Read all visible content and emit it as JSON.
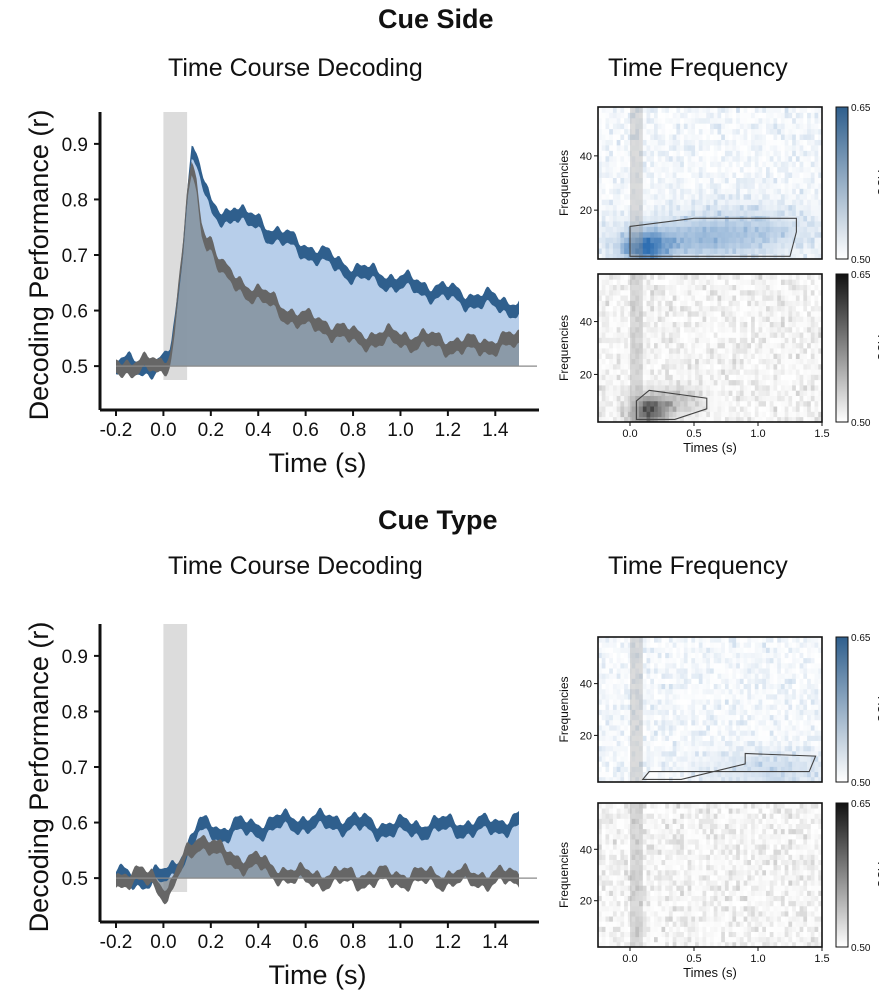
{
  "colors": {
    "blue": "#2f5f8d",
    "blue_fill": "#aac6e6",
    "gray": "#666666",
    "gray_fill": "#7c8892",
    "stim_shade": "#dcdcdc",
    "baseline": "#8a8a8a"
  },
  "sections": [
    {
      "title": "Cue Side",
      "left_title": "Time Course Decoding",
      "right_title": "Time Frequency"
    },
    {
      "title": "Cue Type",
      "left_title": "Time Course Decoding",
      "right_title": "Time Frequency"
    }
  ],
  "chart_data": [
    {
      "type": "area",
      "title": "Time Course Decoding",
      "xlabel": "Time (s)",
      "ylabel": "Decoding Performance (r)",
      "xlim": [
        -0.2,
        1.5
      ],
      "ylim": [
        0.5,
        0.9
      ],
      "xticks": [
        "-0.2",
        "0.0",
        "0.2",
        "0.4",
        "0.6",
        "0.8",
        "1.0",
        "1.2",
        "1.4"
      ],
      "yticks": [
        "0.5",
        "0.6",
        "0.7",
        "0.8",
        "0.9"
      ],
      "baseline": 0.5,
      "shaded_interval": [
        0.0,
        0.1
      ],
      "series": [
        {
          "color": "blue",
          "x": [
            -0.2,
            -0.15,
            -0.1,
            -0.05,
            0.0,
            0.03,
            0.05,
            0.08,
            0.1,
            0.12,
            0.14,
            0.16,
            0.18,
            0.2,
            0.25,
            0.3,
            0.35,
            0.4,
            0.45,
            0.5,
            0.6,
            0.7,
            0.8,
            0.9,
            1.0,
            1.1,
            1.2,
            1.3,
            1.4,
            1.5
          ],
          "y": [
            0.5,
            0.5,
            0.5,
            0.5,
            0.5,
            0.52,
            0.58,
            0.7,
            0.82,
            0.89,
            0.87,
            0.84,
            0.81,
            0.78,
            0.77,
            0.78,
            0.76,
            0.76,
            0.74,
            0.73,
            0.71,
            0.69,
            0.67,
            0.66,
            0.65,
            0.64,
            0.63,
            0.62,
            0.615,
            0.605
          ],
          "band": 0.012
        },
        {
          "color": "gray",
          "x": [
            -0.2,
            -0.15,
            -0.1,
            -0.05,
            0.0,
            0.03,
            0.05,
            0.08,
            0.1,
            0.12,
            0.14,
            0.16,
            0.18,
            0.2,
            0.22,
            0.25,
            0.3,
            0.35,
            0.4,
            0.5,
            0.6,
            0.7,
            0.8,
            0.9,
            1.0,
            1.1,
            1.2,
            1.3,
            1.4,
            1.5
          ],
          "y": [
            0.5,
            0.5,
            0.5,
            0.5,
            0.5,
            0.52,
            0.58,
            0.7,
            0.8,
            0.85,
            0.82,
            0.76,
            0.72,
            0.73,
            0.7,
            0.67,
            0.65,
            0.64,
            0.63,
            0.6,
            0.58,
            0.57,
            0.55,
            0.55,
            0.55,
            0.545,
            0.54,
            0.535,
            0.54,
            0.545
          ],
          "band": 0.012
        }
      ]
    },
    {
      "type": "heatmap",
      "title": "Time Frequency",
      "colorbar_label": "AUC",
      "colorbar_ticks": [
        "0.65",
        "0.50"
      ],
      "colormap": "blue",
      "ylabel": "Frequencies",
      "yticks": [
        "20",
        "40"
      ],
      "xlim": [
        -0.25,
        1.5
      ],
      "ylim": [
        2,
        58
      ],
      "shaded_interval": [
        0.0,
        0.1
      ],
      "blobs": [
        {
          "t": 0.12,
          "f": 6,
          "st": 0.12,
          "sf": 4,
          "amp": 0.12
        },
        {
          "t": 0.5,
          "f": 9,
          "st": 0.4,
          "sf": 5,
          "amp": 0.05
        },
        {
          "t": 0.9,
          "f": 14,
          "st": 0.4,
          "sf": 6,
          "amp": 0.03
        }
      ],
      "contour": [
        [
          0.0,
          3
        ],
        [
          0.0,
          14
        ],
        [
          0.5,
          17
        ],
        [
          1.3,
          17
        ],
        [
          1.3,
          12
        ],
        [
          1.25,
          3
        ]
      ]
    },
    {
      "type": "heatmap",
      "title": "",
      "colorbar_label": "AUC",
      "colorbar_ticks": [
        "0.65",
        "0.50"
      ],
      "colormap": "gray",
      "xlabel": "Times (s)",
      "ylabel": "Frequencies",
      "xticks": [
        "0.0",
        "0.5",
        "1.0",
        "1.5"
      ],
      "yticks": [
        "20",
        "40"
      ],
      "xlim": [
        -0.25,
        1.5
      ],
      "ylim": [
        2,
        58
      ],
      "shaded_interval": [
        0.0,
        0.1
      ],
      "blobs": [
        {
          "t": 0.15,
          "f": 6,
          "st": 0.1,
          "sf": 4,
          "amp": 0.1
        },
        {
          "t": 0.35,
          "f": 10,
          "st": 0.15,
          "sf": 4,
          "amp": 0.03
        }
      ],
      "contour": [
        [
          0.05,
          3
        ],
        [
          0.05,
          10
        ],
        [
          0.15,
          14
        ],
        [
          0.6,
          11
        ],
        [
          0.6,
          7
        ],
        [
          0.35,
          3
        ]
      ]
    },
    {
      "type": "area",
      "title": "Time Course Decoding",
      "xlabel": "Time (s)",
      "ylabel": "Decoding Performance (r)",
      "xlim": [
        -0.2,
        1.5
      ],
      "ylim": [
        0.5,
        0.9
      ],
      "xticks": [
        "-0.2",
        "0.0",
        "0.2",
        "0.4",
        "0.6",
        "0.8",
        "1.0",
        "1.2",
        "1.4"
      ],
      "yticks": [
        "0.5",
        "0.6",
        "0.7",
        "0.8",
        "0.9"
      ],
      "baseline": 0.5,
      "shaded_interval": [
        0.0,
        0.1
      ],
      "series": [
        {
          "color": "blue",
          "x": [
            -0.2,
            -0.15,
            -0.1,
            -0.05,
            0.0,
            0.05,
            0.1,
            0.15,
            0.2,
            0.25,
            0.3,
            0.4,
            0.5,
            0.6,
            0.7,
            0.8,
            0.9,
            1.0,
            1.1,
            1.2,
            1.3,
            1.4,
            1.5
          ],
          "y": [
            0.5,
            0.5,
            0.5,
            0.5,
            0.5,
            0.52,
            0.55,
            0.59,
            0.59,
            0.58,
            0.59,
            0.59,
            0.6,
            0.6,
            0.6,
            0.6,
            0.59,
            0.59,
            0.59,
            0.595,
            0.59,
            0.595,
            0.6
          ],
          "band": 0.012
        },
        {
          "color": "gray",
          "x": [
            -0.2,
            -0.15,
            -0.1,
            -0.05,
            0.0,
            0.02,
            0.05,
            0.1,
            0.15,
            0.2,
            0.25,
            0.3,
            0.35,
            0.4,
            0.45,
            0.5,
            0.6,
            0.7,
            0.8,
            0.9,
            1.0,
            1.1,
            1.2,
            1.3,
            1.4,
            1.5
          ],
          "y": [
            0.5,
            0.5,
            0.5,
            0.5,
            0.48,
            0.47,
            0.5,
            0.54,
            0.57,
            0.56,
            0.54,
            0.53,
            0.53,
            0.53,
            0.51,
            0.51,
            0.5,
            0.5,
            0.5,
            0.5,
            0.5,
            0.5,
            0.5,
            0.5,
            0.5,
            0.5
          ],
          "band": 0.012
        }
      ]
    },
    {
      "type": "heatmap",
      "title": "Time Frequency",
      "colorbar_label": "AUC",
      "colorbar_ticks": [
        "0.65",
        "0.50"
      ],
      "colormap": "blue",
      "ylabel": "Frequencies",
      "yticks": [
        "20",
        "40"
      ],
      "xlim": [
        -0.25,
        1.5
      ],
      "ylim": [
        2,
        58
      ],
      "shaded_interval": [
        0.0,
        0.1
      ],
      "blobs": [
        {
          "t": 1.1,
          "f": 7,
          "st": 0.35,
          "sf": 5,
          "amp": 0.03
        }
      ],
      "contour": [
        [
          0.1,
          3
        ],
        [
          0.15,
          6
        ],
        [
          1.4,
          6
        ],
        [
          1.45,
          12
        ],
        [
          0.9,
          13
        ],
        [
          0.9,
          9
        ],
        [
          0.4,
          3
        ]
      ]
    },
    {
      "type": "heatmap",
      "title": "",
      "colorbar_label": "AUC",
      "colorbar_ticks": [
        "0.65",
        "0.50"
      ],
      "colormap": "gray",
      "xlabel": "Times (s)",
      "ylabel": "Frequencies",
      "xticks": [
        "0.0",
        "0.5",
        "1.0",
        "1.5"
      ],
      "yticks": [
        "20",
        "40"
      ],
      "xlim": [
        -0.25,
        1.5
      ],
      "ylim": [
        2,
        58
      ],
      "shaded_interval": [
        0.0,
        0.1
      ],
      "blobs": [],
      "contour": []
    }
  ]
}
